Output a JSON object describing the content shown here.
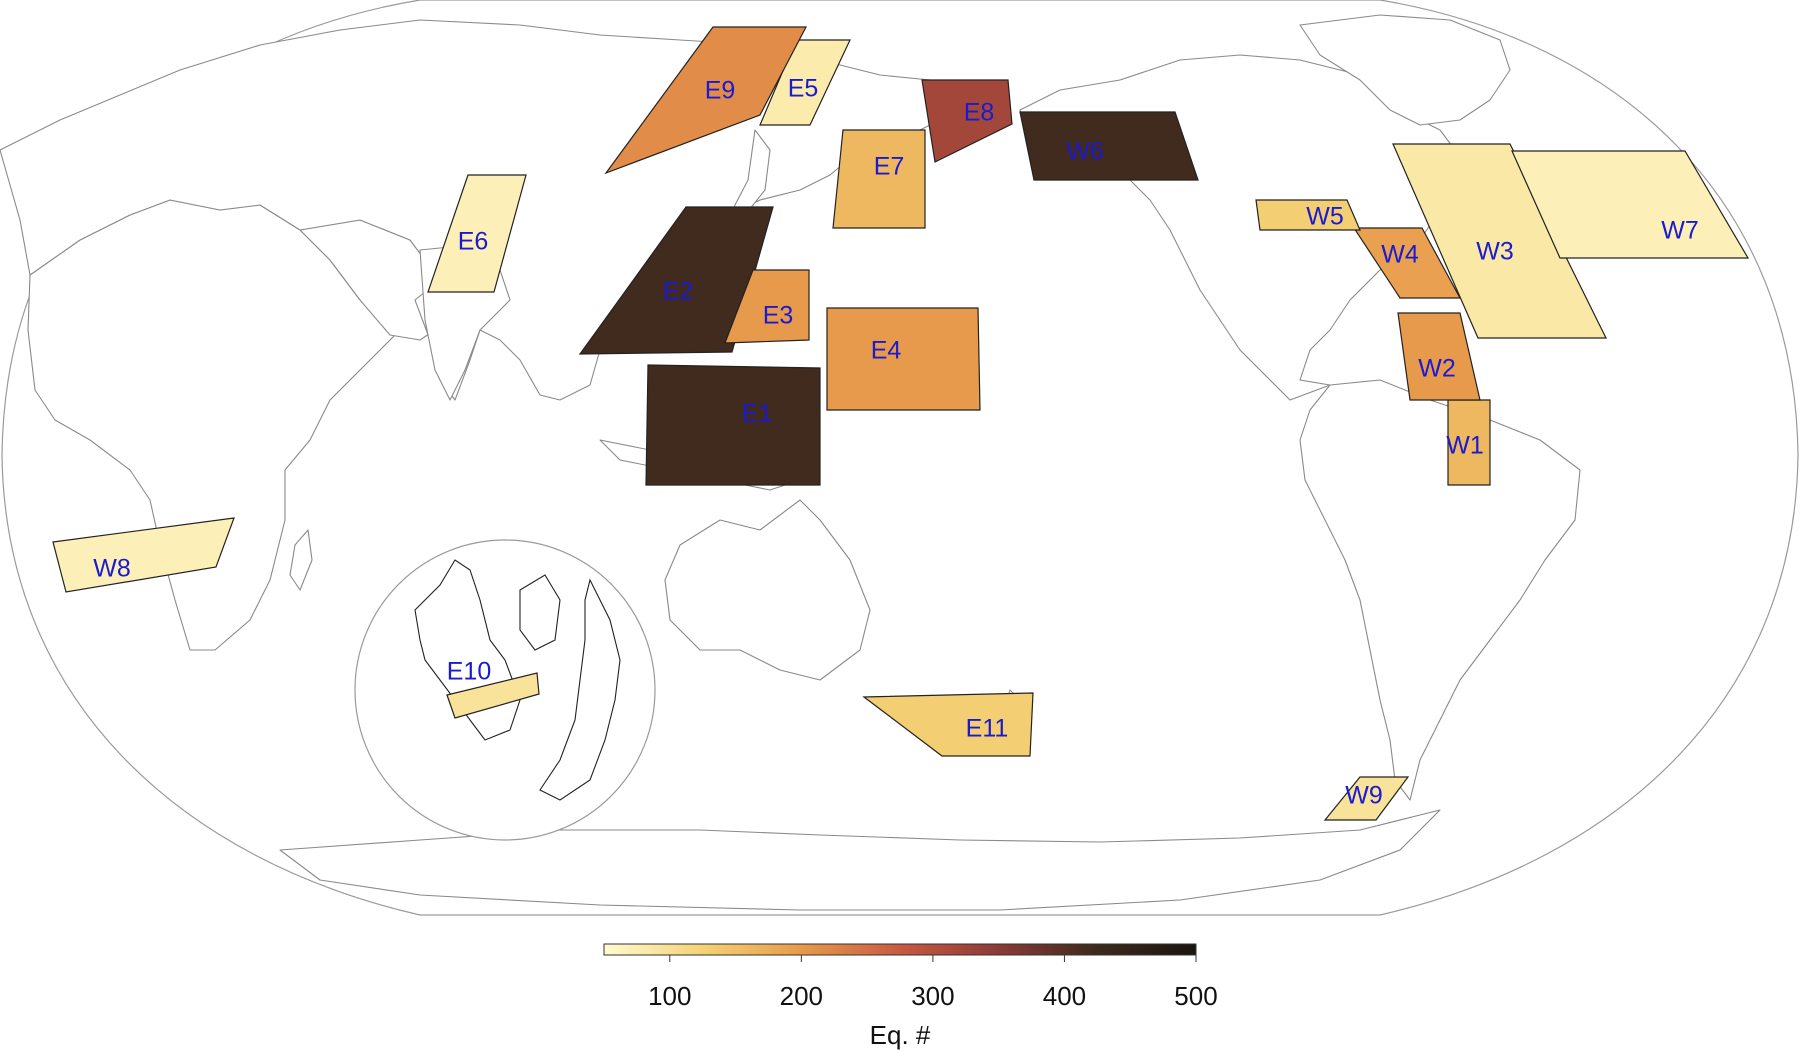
{
  "colorbar": {
    "title": "Eq. #",
    "min": 50,
    "max": 500,
    "ticks": [
      100,
      200,
      300,
      400,
      500
    ],
    "colors": [
      "#fffbd0",
      "#f5d275",
      "#e79a4b",
      "#c85a42",
      "#8c3a37",
      "#3c2a1c",
      "#1a1410"
    ]
  },
  "regions": [
    {
      "id": "E1",
      "value": 420
    },
    {
      "id": "E2",
      "value": 420
    },
    {
      "id": "E3",
      "value": 200
    },
    {
      "id": "E4",
      "value": 200
    },
    {
      "id": "E5",
      "value": 80
    },
    {
      "id": "E6",
      "value": 70
    },
    {
      "id": "E7",
      "value": 160
    },
    {
      "id": "E8",
      "value": 320
    },
    {
      "id": "E9",
      "value": 215
    },
    {
      "id": "E10",
      "value": 95
    },
    {
      "id": "E11",
      "value": 130
    },
    {
      "id": "W1",
      "value": 160
    },
    {
      "id": "W2",
      "value": 200
    },
    {
      "id": "W3",
      "value": 85
    },
    {
      "id": "W4",
      "value": 190
    },
    {
      "id": "W5",
      "value": 130
    },
    {
      "id": "W6",
      "value": 420
    },
    {
      "id": "W7",
      "value": 70
    },
    {
      "id": "W8",
      "value": 70
    },
    {
      "id": "W9",
      "value": 95
    }
  ]
}
